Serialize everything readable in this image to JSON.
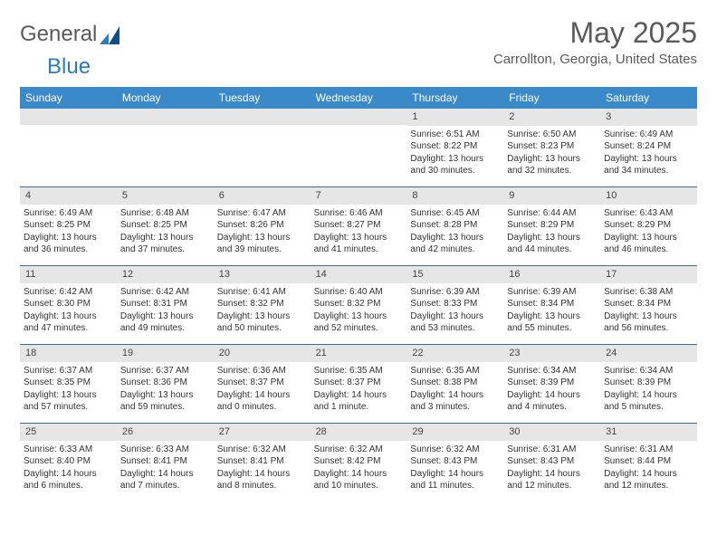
{
  "brand": {
    "part1": "General",
    "part2": "Blue"
  },
  "title": "May 2025",
  "location": "Carrollton, Georgia, United States",
  "colors": {
    "header_bg": "#3a89c9",
    "header_text": "#ffffff",
    "daynum_bg": "#e6e6e6",
    "row_border": "#3a6f9a",
    "text": "#333333",
    "muted": "#5a5a5a"
  },
  "day_names": [
    "Sunday",
    "Monday",
    "Tuesday",
    "Wednesday",
    "Thursday",
    "Friday",
    "Saturday"
  ],
  "weeks": [
    [
      {
        "empty": true
      },
      {
        "empty": true
      },
      {
        "empty": true
      },
      {
        "empty": true
      },
      {
        "day": 1,
        "sunrise": "Sunrise: 6:51 AM",
        "sunset": "Sunset: 8:22 PM",
        "daylight": "Daylight: 13 hours and 30 minutes."
      },
      {
        "day": 2,
        "sunrise": "Sunrise: 6:50 AM",
        "sunset": "Sunset: 8:23 PM",
        "daylight": "Daylight: 13 hours and 32 minutes."
      },
      {
        "day": 3,
        "sunrise": "Sunrise: 6:49 AM",
        "sunset": "Sunset: 8:24 PM",
        "daylight": "Daylight: 13 hours and 34 minutes."
      }
    ],
    [
      {
        "day": 4,
        "sunrise": "Sunrise: 6:49 AM",
        "sunset": "Sunset: 8:25 PM",
        "daylight": "Daylight: 13 hours and 36 minutes."
      },
      {
        "day": 5,
        "sunrise": "Sunrise: 6:48 AM",
        "sunset": "Sunset: 8:25 PM",
        "daylight": "Daylight: 13 hours and 37 minutes."
      },
      {
        "day": 6,
        "sunrise": "Sunrise: 6:47 AM",
        "sunset": "Sunset: 8:26 PM",
        "daylight": "Daylight: 13 hours and 39 minutes."
      },
      {
        "day": 7,
        "sunrise": "Sunrise: 6:46 AM",
        "sunset": "Sunset: 8:27 PM",
        "daylight": "Daylight: 13 hours and 41 minutes."
      },
      {
        "day": 8,
        "sunrise": "Sunrise: 6:45 AM",
        "sunset": "Sunset: 8:28 PM",
        "daylight": "Daylight: 13 hours and 42 minutes."
      },
      {
        "day": 9,
        "sunrise": "Sunrise: 6:44 AM",
        "sunset": "Sunset: 8:29 PM",
        "daylight": "Daylight: 13 hours and 44 minutes."
      },
      {
        "day": 10,
        "sunrise": "Sunrise: 6:43 AM",
        "sunset": "Sunset: 8:29 PM",
        "daylight": "Daylight: 13 hours and 46 minutes."
      }
    ],
    [
      {
        "day": 11,
        "sunrise": "Sunrise: 6:42 AM",
        "sunset": "Sunset: 8:30 PM",
        "daylight": "Daylight: 13 hours and 47 minutes."
      },
      {
        "day": 12,
        "sunrise": "Sunrise: 6:42 AM",
        "sunset": "Sunset: 8:31 PM",
        "daylight": "Daylight: 13 hours and 49 minutes."
      },
      {
        "day": 13,
        "sunrise": "Sunrise: 6:41 AM",
        "sunset": "Sunset: 8:32 PM",
        "daylight": "Daylight: 13 hours and 50 minutes."
      },
      {
        "day": 14,
        "sunrise": "Sunrise: 6:40 AM",
        "sunset": "Sunset: 8:32 PM",
        "daylight": "Daylight: 13 hours and 52 minutes."
      },
      {
        "day": 15,
        "sunrise": "Sunrise: 6:39 AM",
        "sunset": "Sunset: 8:33 PM",
        "daylight": "Daylight: 13 hours and 53 minutes."
      },
      {
        "day": 16,
        "sunrise": "Sunrise: 6:39 AM",
        "sunset": "Sunset: 8:34 PM",
        "daylight": "Daylight: 13 hours and 55 minutes."
      },
      {
        "day": 17,
        "sunrise": "Sunrise: 6:38 AM",
        "sunset": "Sunset: 8:34 PM",
        "daylight": "Daylight: 13 hours and 56 minutes."
      }
    ],
    [
      {
        "day": 18,
        "sunrise": "Sunrise: 6:37 AM",
        "sunset": "Sunset: 8:35 PM",
        "daylight": "Daylight: 13 hours and 57 minutes."
      },
      {
        "day": 19,
        "sunrise": "Sunrise: 6:37 AM",
        "sunset": "Sunset: 8:36 PM",
        "daylight": "Daylight: 13 hours and 59 minutes."
      },
      {
        "day": 20,
        "sunrise": "Sunrise: 6:36 AM",
        "sunset": "Sunset: 8:37 PM",
        "daylight": "Daylight: 14 hours and 0 minutes."
      },
      {
        "day": 21,
        "sunrise": "Sunrise: 6:35 AM",
        "sunset": "Sunset: 8:37 PM",
        "daylight": "Daylight: 14 hours and 1 minute."
      },
      {
        "day": 22,
        "sunrise": "Sunrise: 6:35 AM",
        "sunset": "Sunset: 8:38 PM",
        "daylight": "Daylight: 14 hours and 3 minutes."
      },
      {
        "day": 23,
        "sunrise": "Sunrise: 6:34 AM",
        "sunset": "Sunset: 8:39 PM",
        "daylight": "Daylight: 14 hours and 4 minutes."
      },
      {
        "day": 24,
        "sunrise": "Sunrise: 6:34 AM",
        "sunset": "Sunset: 8:39 PM",
        "daylight": "Daylight: 14 hours and 5 minutes."
      }
    ],
    [
      {
        "day": 25,
        "sunrise": "Sunrise: 6:33 AM",
        "sunset": "Sunset: 8:40 PM",
        "daylight": "Daylight: 14 hours and 6 minutes."
      },
      {
        "day": 26,
        "sunrise": "Sunrise: 6:33 AM",
        "sunset": "Sunset: 8:41 PM",
        "daylight": "Daylight: 14 hours and 7 minutes."
      },
      {
        "day": 27,
        "sunrise": "Sunrise: 6:32 AM",
        "sunset": "Sunset: 8:41 PM",
        "daylight": "Daylight: 14 hours and 8 minutes."
      },
      {
        "day": 28,
        "sunrise": "Sunrise: 6:32 AM",
        "sunset": "Sunset: 8:42 PM",
        "daylight": "Daylight: 14 hours and 10 minutes."
      },
      {
        "day": 29,
        "sunrise": "Sunrise: 6:32 AM",
        "sunset": "Sunset: 8:43 PM",
        "daylight": "Daylight: 14 hours and 11 minutes."
      },
      {
        "day": 30,
        "sunrise": "Sunrise: 6:31 AM",
        "sunset": "Sunset: 8:43 PM",
        "daylight": "Daylight: 14 hours and 12 minutes."
      },
      {
        "day": 31,
        "sunrise": "Sunrise: 6:31 AM",
        "sunset": "Sunset: 8:44 PM",
        "daylight": "Daylight: 14 hours and 12 minutes."
      }
    ]
  ]
}
